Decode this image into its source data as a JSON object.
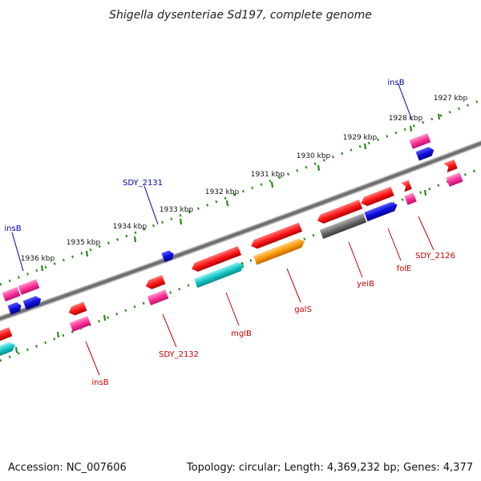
{
  "title": "Shigella dysenteriae Sd197, complete genome",
  "footer": {
    "accession": "Accession: NC_007606",
    "summary": "Topology: circular; Length: 4,369,232 bp; Genes: 4,377"
  },
  "scale_labels": [
    "1927 kbp",
    "1928 kbp",
    "1929 kbp",
    "1930 kbp",
    "1931 kbp",
    "1932 kbp",
    "1933 kbp",
    "1934 kbp",
    "1935 kbp",
    "1936 kbp"
  ],
  "upper_labels": [
    "insB",
    "SDY_2131",
    "insB"
  ],
  "lower_labels": [
    "SDY_2126",
    "folE",
    "yeiB",
    "galS",
    "mglB",
    "SDY_2132",
    "insB"
  ],
  "colors": {
    "red": "#ff1a1a",
    "magenta": "#ff3399",
    "blue": "#1010e0",
    "cyan": "#19c8c8",
    "orange": "#ff9a0a",
    "gray": "#6d6d6d",
    "backbone": "#777777",
    "ticks": "#2a8a1a",
    "label_blue": "#0000aa",
    "label_red": "#cc0000"
  }
}
